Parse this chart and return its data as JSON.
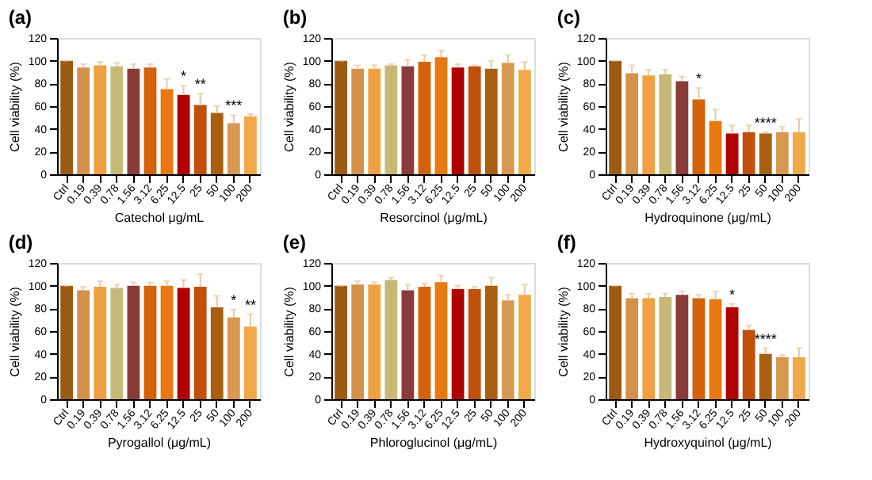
{
  "chart_data": [
    {
      "type": "bar",
      "title": "(a)",
      "xlabel": "Catechol μg/mL",
      "ylabel": "Cell viability (%)",
      "categories": [
        "Ctrl",
        "0.19",
        "0.39",
        "0.78",
        "1.56",
        "3.12",
        "6.25",
        "12.5",
        "25",
        "50",
        "100",
        "200"
      ],
      "values": [
        100,
        94,
        96,
        95,
        93,
        94,
        75,
        70,
        61,
        54,
        45,
        51
      ],
      "errors": [
        [
          100,
          100
        ],
        [
          94,
          97
        ],
        [
          96,
          99
        ],
        [
          95,
          98
        ],
        [
          93,
          97
        ],
        [
          94,
          97
        ],
        [
          75,
          84
        ],
        [
          70,
          78
        ],
        [
          61,
          71
        ],
        [
          54,
          60
        ],
        [
          45,
          52
        ],
        [
          51,
          53
        ]
      ],
      "colors": [
        "#9c5b13",
        "#d4914a",
        "#f0a040",
        "#c8b878",
        "#8b3a3a",
        "#d4620a",
        "#e87810",
        "#b00000",
        "#c0500a",
        "#a86010",
        "#d89850",
        "#f0a848"
      ],
      "ylim": [
        0,
        120
      ],
      "yticks": [
        0,
        20,
        40,
        60,
        80,
        100,
        120
      ],
      "grid": false,
      "annotations": [
        {
          "text": "*",
          "x": "12.5",
          "y": 78
        },
        {
          "text": "**",
          "x": "25",
          "y": 71
        },
        {
          "text": "***",
          "x": "100",
          "y": 52
        }
      ]
    },
    {
      "type": "bar",
      "title": "(b)",
      "xlabel": "Resorcinol (μg/mL)",
      "ylabel": "Cell viability (%)",
      "categories": [
        "Ctrl",
        "0.19",
        "0.39",
        "0.78",
        "1.56",
        "3.12",
        "6.25",
        "12.5",
        "25",
        "50",
        "100",
        "200"
      ],
      "values": [
        100,
        93,
        93,
        96,
        95,
        99,
        103,
        94,
        95,
        93,
        98,
        92
      ],
      "errors": [
        [
          100,
          100
        ],
        [
          93,
          96
        ],
        [
          93,
          96
        ],
        [
          96,
          97
        ],
        [
          95,
          101
        ],
        [
          99,
          105
        ],
        [
          103,
          109
        ],
        [
          94,
          97
        ],
        [
          95,
          96
        ],
        [
          93,
          100
        ],
        [
          98,
          105
        ],
        [
          92,
          99
        ]
      ],
      "colors": [
        "#9c5b13",
        "#d4914a",
        "#f0a040",
        "#c8b878",
        "#8b3a3a",
        "#d4620a",
        "#e87810",
        "#b00000",
        "#c0500a",
        "#a86010",
        "#d89850",
        "#f0a848"
      ],
      "ylim": [
        0,
        120
      ],
      "yticks": [
        0,
        20,
        40,
        60,
        80,
        100,
        120
      ],
      "grid": false
    },
    {
      "type": "bar",
      "title": "(c)",
      "xlabel": "Hydroquinone (μg/mL)",
      "ylabel": "Cell viability (%)",
      "categories": [
        "Ctrl",
        "0.19",
        "0.39",
        "0.78",
        "1.56",
        "3.12",
        "6.25",
        "12.5",
        "25",
        "50",
        "100",
        "200"
      ],
      "values": [
        100,
        89,
        87,
        88,
        82,
        66,
        47,
        36,
        37,
        36,
        37,
        37
      ],
      "errors": [
        [
          100,
          100
        ],
        [
          89,
          96
        ],
        [
          87,
          92
        ],
        [
          88,
          92
        ],
        [
          82,
          86
        ],
        [
          66,
          76
        ],
        [
          47,
          57
        ],
        [
          36,
          43
        ],
        [
          37,
          43
        ],
        [
          36,
          37
        ],
        [
          37,
          42
        ],
        [
          37,
          49
        ]
      ],
      "colors": [
        "#9c5b13",
        "#d4914a",
        "#f0a040",
        "#c8b878",
        "#8b3a3a",
        "#d4620a",
        "#e87810",
        "#b00000",
        "#c0500a",
        "#a86010",
        "#d89850",
        "#f0a848"
      ],
      "ylim": [
        0,
        120
      ],
      "yticks": [
        0,
        20,
        40,
        60,
        80,
        100,
        120
      ],
      "grid": false,
      "annotations": [
        {
          "text": "*",
          "x": "3.12",
          "y": 76
        },
        {
          "text": "****",
          "x": "50",
          "y": 37
        }
      ]
    },
    {
      "type": "bar",
      "title": "(d)",
      "xlabel": "Pyrogallol (μg/mL)",
      "ylabel": "Cell viability (%)",
      "categories": [
        "Ctrl",
        "0.19",
        "0.39",
        "0.78",
        "1.56",
        "3.12",
        "6.25",
        "12.5",
        "25",
        "50",
        "100",
        "200"
      ],
      "values": [
        100,
        96,
        99,
        98,
        100,
        100,
        100,
        98,
        99,
        81,
        72,
        64
      ],
      "errors": [
        [
          100,
          100
        ],
        [
          96,
          99
        ],
        [
          99,
          104
        ],
        [
          98,
          101
        ],
        [
          100,
          103
        ],
        [
          100,
          103
        ],
        [
          100,
          104
        ],
        [
          98,
          105
        ],
        [
          99,
          110
        ],
        [
          81,
          91
        ],
        [
          72,
          79
        ],
        [
          64,
          75
        ]
      ],
      "colors": [
        "#9c5b13",
        "#d4914a",
        "#f0a040",
        "#c8b878",
        "#8b3a3a",
        "#d4620a",
        "#e87810",
        "#b00000",
        "#c0500a",
        "#a86010",
        "#d89850",
        "#f0a848"
      ],
      "ylim": [
        0,
        120
      ],
      "yticks": [
        0,
        20,
        40,
        60,
        80,
        100,
        120
      ],
      "grid": false,
      "annotations": [
        {
          "text": "*",
          "x": "100",
          "y": 79
        },
        {
          "text": "**",
          "x": "200",
          "y": 75
        }
      ]
    },
    {
      "type": "bar",
      "title": "(e)",
      "xlabel": "Phloroglucinol (μg/mL)",
      "ylabel": "Cell viability (%)",
      "categories": [
        "Ctrl",
        "0.19",
        "0.39",
        "0.78",
        "1.56",
        "3.12",
        "6.25",
        "12.5",
        "25",
        "50",
        "100",
        "200"
      ],
      "values": [
        100,
        101,
        101,
        105,
        96,
        99,
        103,
        97,
        97,
        100,
        87,
        92
      ],
      "errors": [
        [
          100,
          100
        ],
        [
          101,
          104
        ],
        [
          101,
          103
        ],
        [
          105,
          107
        ],
        [
          96,
          101
        ],
        [
          99,
          102
        ],
        [
          103,
          109
        ],
        [
          97,
          100
        ],
        [
          97,
          99
        ],
        [
          100,
          107
        ],
        [
          87,
          92
        ],
        [
          92,
          101
        ]
      ],
      "colors": [
        "#9c5b13",
        "#d4914a",
        "#f0a040",
        "#c8b878",
        "#8b3a3a",
        "#d4620a",
        "#e87810",
        "#b00000",
        "#c0500a",
        "#a86010",
        "#d89850",
        "#f0a848"
      ],
      "ylim": [
        0,
        120
      ],
      "yticks": [
        0,
        20,
        40,
        60,
        80,
        100,
        120
      ],
      "grid": false
    },
    {
      "type": "bar",
      "title": "(f)",
      "xlabel": "Hydroxyquinol (μg/mL)",
      "ylabel": "Cell viability (%)",
      "categories": [
        "Ctrl",
        "0.19",
        "0.39",
        "0.78",
        "1.56",
        "3.12",
        "6.25",
        "12.5",
        "25",
        "50",
        "100",
        "200"
      ],
      "values": [
        100,
        89,
        89,
        90,
        92,
        89,
        88,
        81,
        61,
        40,
        37,
        37
      ],
      "errors": [
        [
          100,
          100
        ],
        [
          89,
          93
        ],
        [
          89,
          93
        ],
        [
          90,
          93
        ],
        [
          92,
          95
        ],
        [
          89,
          92
        ],
        [
          88,
          95
        ],
        [
          81,
          84
        ],
        [
          61,
          65
        ],
        [
          40,
          45
        ],
        [
          37,
          39
        ],
        [
          37,
          45
        ]
      ],
      "colors": [
        "#9c5b13",
        "#d4914a",
        "#f0a040",
        "#c8b878",
        "#8b3a3a",
        "#d4620a",
        "#e87810",
        "#b00000",
        "#c0500a",
        "#a86010",
        "#d89850",
        "#f0a848"
      ],
      "ylim": [
        0,
        120
      ],
      "yticks": [
        0,
        20,
        40,
        60,
        80,
        100,
        120
      ],
      "grid": false,
      "annotations": [
        {
          "text": "*",
          "x": "12.5",
          "y": 84
        },
        {
          "text": "****",
          "x": "50",
          "y": 45
        }
      ]
    }
  ]
}
